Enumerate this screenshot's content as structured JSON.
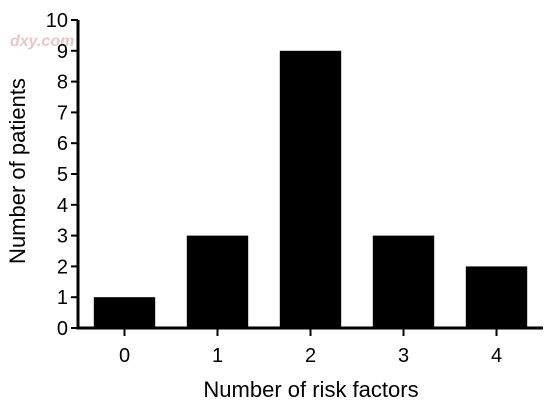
{
  "watermark": "dxy.com",
  "chart_data": {
    "type": "bar",
    "categories": [
      "0",
      "1",
      "2",
      "3",
      "4"
    ],
    "values": [
      1,
      3,
      9,
      3,
      2
    ],
    "xlabel": "Number of risk factors",
    "ylabel": "Number of patients",
    "ylim": [
      0,
      10
    ],
    "yticks": [
      0,
      1,
      2,
      3,
      4,
      5,
      6,
      7,
      8,
      9,
      10
    ],
    "grid": false,
    "legend": "none",
    "bar_color": "#000000"
  }
}
